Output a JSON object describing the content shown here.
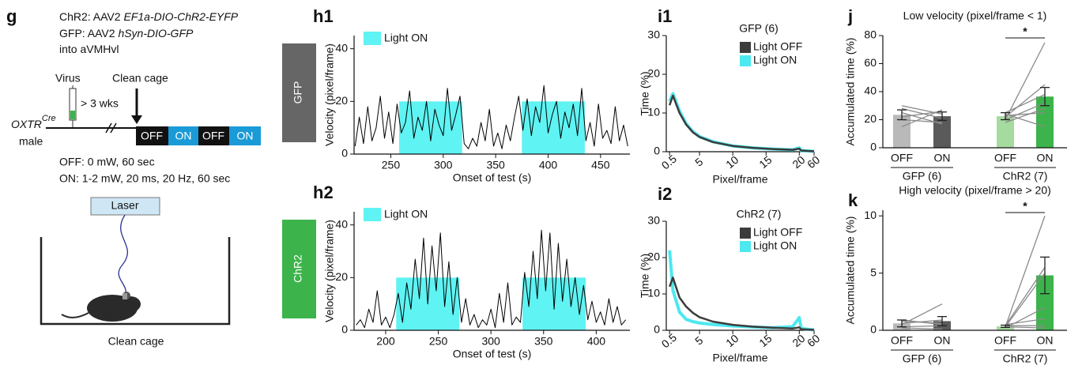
{
  "diagram": {
    "label": "g",
    "lines": [
      {
        "text": "ChR2: AAV2 ",
        "italic": "EF1a-DIO-ChR2-EYFP"
      },
      {
        "text": "GFP: AAV2 ",
        "italic": "hSyn-DIO-GFP"
      },
      {
        "text": "into aVMHvl"
      }
    ],
    "virus": "Virus",
    "clean_cage_arrow": "Clean cage",
    "wait": "> 3 wks",
    "genotype": "OXTR",
    "genotype_sup": "Cre",
    "sex": "male",
    "schedule": [
      "OFF",
      "ON",
      "OFF",
      "ON"
    ],
    "off_desc": "OFF: 0 mW, 60 sec",
    "on_desc": "ON: 1-2 mW, 20 ms, 20 Hz, 60 sec",
    "laser": "Laser",
    "cage": "Clean cage"
  },
  "chart_data": [
    {
      "type": "line",
      "label": "h1",
      "side_label": "GFP",
      "side_color": "#666666",
      "xlabel": "Onset of test (s)",
      "ylabel": "Velocity (pixel/frame)",
      "xlim": [
        215,
        478
      ],
      "xticks": [
        250,
        300,
        350,
        400,
        450
      ],
      "ylim": [
        0,
        45
      ],
      "yticks": [
        0,
        20,
        40
      ],
      "light_on": {
        "label": "Light ON",
        "color": "#5ff3f3",
        "spans": [
          [
            258,
            318
          ],
          [
            375,
            435
          ]
        ],
        "height": 20
      },
      "x": [
        216,
        220,
        224,
        228,
        232,
        236,
        240,
        244,
        248,
        252,
        256,
        260,
        264,
        268,
        272,
        276,
        280,
        284,
        288,
        292,
        296,
        300,
        304,
        308,
        312,
        316,
        320,
        324,
        328,
        332,
        336,
        340,
        344,
        348,
        352,
        356,
        360,
        364,
        368,
        372,
        376,
        380,
        384,
        388,
        392,
        396,
        400,
        404,
        408,
        412,
        416,
        420,
        424,
        428,
        432,
        436,
        440,
        444,
        448,
        452,
        456,
        460,
        464,
        468,
        472,
        476
      ],
      "series": [
        {
          "color": "#000000",
          "values": [
            3,
            14,
            4,
            18,
            5,
            10,
            22,
            6,
            16,
            4,
            19,
            8,
            12,
            24,
            6,
            14,
            9,
            20,
            5,
            17,
            11,
            7,
            25,
            9,
            15,
            22,
            4,
            2,
            6,
            3,
            12,
            5,
            17,
            3,
            8,
            2,
            11,
            5,
            14,
            22,
            9,
            21,
            7,
            18,
            12,
            26,
            8,
            15,
            20,
            6,
            16,
            10,
            19,
            7,
            25,
            5,
            12,
            3,
            19,
            6,
            9,
            4,
            18,
            5,
            11,
            3
          ]
        }
      ]
    },
    {
      "type": "line",
      "label": "h2",
      "side_label": "ChR2",
      "side_color": "#3cb44b",
      "xlabel": "Onset of test (s)",
      "ylabel": "Velocity (pixel/frame)",
      "xlim": [
        170,
        432
      ],
      "xticks": [
        200,
        250,
        300,
        350,
        400
      ],
      "ylim": [
        0,
        45
      ],
      "yticks": [
        0,
        20,
        40
      ],
      "light_on": {
        "label": "Light ON",
        "color": "#5ff3f3",
        "spans": [
          [
            210,
            270
          ],
          [
            330,
            390
          ]
        ],
        "height": 20
      },
      "x": [
        172,
        176,
        180,
        184,
        188,
        192,
        196,
        200,
        204,
        208,
        212,
        216,
        220,
        224,
        228,
        232,
        236,
        240,
        244,
        248,
        252,
        256,
        260,
        264,
        268,
        272,
        276,
        280,
        284,
        288,
        292,
        296,
        300,
        304,
        308,
        312,
        316,
        320,
        324,
        328,
        332,
        336,
        340,
        344,
        348,
        352,
        356,
        360,
        364,
        368,
        372,
        376,
        380,
        384,
        388,
        392,
        396,
        400,
        404,
        408,
        412,
        416,
        420,
        424,
        428
      ],
      "series": [
        {
          "color": "#000000",
          "values": [
            2,
            4,
            1,
            8,
            3,
            15,
            2,
            5,
            1,
            6,
            14,
            3,
            18,
            8,
            27,
            12,
            35,
            10,
            32,
            15,
            37,
            9,
            26,
            6,
            20,
            3,
            12,
            2,
            6,
            1,
            4,
            2,
            8,
            1,
            14,
            3,
            18,
            2,
            5,
            3,
            22,
            9,
            30,
            12,
            38,
            15,
            37,
            8,
            33,
            11,
            27,
            9,
            20,
            6,
            17,
            4,
            11,
            3,
            7,
            2,
            12,
            3,
            9,
            2,
            4
          ]
        }
      ]
    },
    {
      "type": "line",
      "label": "i1",
      "title": "GFP (6)",
      "xlabel": "Pixel/frame",
      "ylabel": "Time (%)",
      "xlim": [
        0,
        60
      ],
      "xbreak": 20,
      "xticks": [
        0.5,
        5,
        10,
        15,
        20,
        60
      ],
      "ylim": [
        0,
        30
      ],
      "yticks": [
        0,
        10,
        20,
        30
      ],
      "x": [
        0.5,
        1,
        2,
        3,
        4,
        5,
        7,
        10,
        13,
        16,
        19,
        20,
        25,
        60
      ],
      "series": [
        {
          "name": "Light OFF",
          "color": "#3c3c3c",
          "values": [
            12,
            14.5,
            10,
            7,
            5,
            3.8,
            2.5,
            1.5,
            1,
            0.7,
            0.5,
            0.8,
            0.3,
            0.1
          ]
        },
        {
          "name": "Light ON",
          "color": "#4de8f0",
          "values": [
            13,
            15,
            10.5,
            7.2,
            5.2,
            3.9,
            2.6,
            1.5,
            1,
            0.7,
            0.5,
            1,
            0.3,
            0.1
          ]
        }
      ]
    },
    {
      "type": "line",
      "label": "i2",
      "title": "ChR2 (7)",
      "xlabel": "Pixel/frame",
      "ylabel": "Time (%)",
      "xlim": [
        0,
        60
      ],
      "xbreak": 20,
      "xticks": [
        0.5,
        5,
        10,
        15,
        20,
        60
      ],
      "ylim": [
        0,
        30
      ],
      "yticks": [
        0,
        10,
        20,
        30
      ],
      "x": [
        0.5,
        1,
        2,
        3,
        4,
        5,
        7,
        10,
        13,
        16,
        19,
        20,
        25,
        60
      ],
      "series": [
        {
          "name": "Light OFF",
          "color": "#3c3c3c",
          "values": [
            12,
            14.5,
            9,
            6.5,
            4.8,
            3.6,
            2.4,
            1.5,
            1,
            0.7,
            0.5,
            0.8,
            0.3,
            0.1
          ]
        },
        {
          "name": "Light ON",
          "color": "#4de8f0",
          "values": [
            22,
            11,
            5,
            3,
            2.4,
            2,
            1.6,
            1.2,
            0.9,
            0.7,
            1,
            3.5,
            0.5,
            0.1
          ]
        }
      ]
    },
    {
      "type": "bar",
      "label": "j",
      "title": "Low velocity (pixel/frame < 1)",
      "ylabel": "Accumulated time (%)",
      "ylim": [
        0,
        80
      ],
      "yticks": [
        0,
        20,
        40,
        60,
        80
      ],
      "categories": [
        "OFF",
        "ON",
        "OFF",
        "ON"
      ],
      "values": [
        23.5,
        22.5,
        22.5,
        36.5
      ],
      "errors": [
        3.5,
        3,
        2.5,
        6.5
      ],
      "colors": [
        "#b9b9b9",
        "#5a5a5a",
        "#a6dba0",
        "#3cb44b"
      ],
      "groups": [
        {
          "label": "GFP (6)",
          "individuals": [
            [
              15,
              27
            ],
            [
              20,
              18
            ],
            [
              22,
              26
            ],
            [
              28,
              21
            ],
            [
              25,
              17
            ],
            [
              30,
              24
            ]
          ]
        },
        {
          "label": "ChR2 (7)",
          "significance": "*",
          "individuals": [
            [
              20,
              75
            ],
            [
              22,
              45
            ],
            [
              25,
              38
            ],
            [
              18,
              28
            ],
            [
              20,
              32
            ],
            [
              23,
              25
            ],
            [
              24,
              15
            ]
          ]
        }
      ]
    },
    {
      "type": "bar",
      "label": "k",
      "title": "High velocity (pixel/frame > 20)",
      "ylabel": "Accumulated time (%)",
      "ylim": [
        0,
        10.5
      ],
      "yticks": [
        0,
        5,
        10
      ],
      "categories": [
        "OFF",
        "ON",
        "OFF",
        "ON"
      ],
      "values": [
        0.6,
        0.8,
        0.35,
        4.8
      ],
      "errors": [
        0.3,
        0.4,
        0.1,
        1.6
      ],
      "colors": [
        "#b9b9b9",
        "#5a5a5a",
        "#a6dba0",
        "#3cb44b"
      ],
      "groups": [
        {
          "label": "GFP (6)",
          "individuals": [
            [
              0.5,
              2.3
            ],
            [
              0.3,
              0.4
            ],
            [
              0.8,
              0.6
            ],
            [
              0.2,
              0.1
            ],
            [
              0.6,
              0.9
            ],
            [
              0.9,
              0.5
            ]
          ]
        },
        {
          "label": "ChR2 (7)",
          "significance": "*",
          "individuals": [
            [
              0.3,
              10
            ],
            [
              0.4,
              5.5
            ],
            [
              0.3,
              5
            ],
            [
              0.2,
              2
            ],
            [
              0.5,
              1
            ],
            [
              0.4,
              0.4
            ],
            [
              0.3,
              0.2
            ]
          ]
        }
      ]
    }
  ]
}
